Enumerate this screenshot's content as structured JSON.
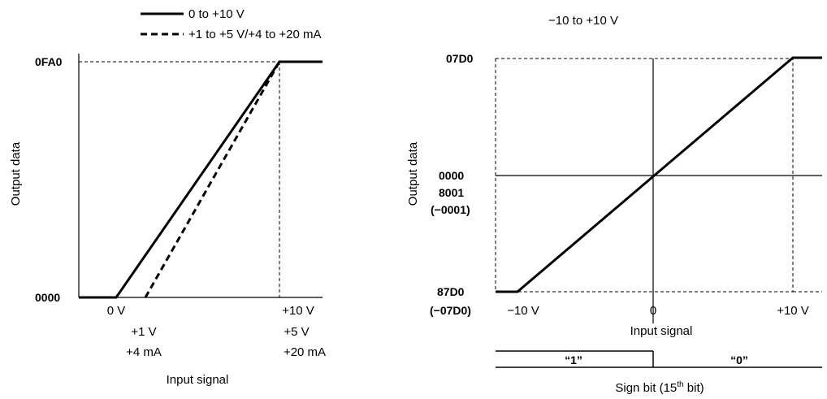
{
  "left_chart": {
    "legend": {
      "solid_label": "0 to +10 V",
      "dashed_label": "+1 to +5 V/+4 to +20 mA"
    },
    "y_axis_label": "Output data",
    "x_axis_label": "Input signal",
    "y_ticks": {
      "top": "0FA0",
      "bottom": "0000"
    },
    "x_ticks": {
      "zero_v": "0 V",
      "one_v": "+1 V",
      "four_ma": "+4 mA",
      "ten_v": "+10 V",
      "five_v": "+5 V",
      "twenty_ma": "+20 mA"
    }
  },
  "right_chart": {
    "title": "−10 to +10 V",
    "y_axis_label": "Output data",
    "x_axis_label": "Input signal",
    "y_ticks": {
      "top": "07D0",
      "zero": "0000",
      "neg_one": "8001",
      "neg_one_paren": "(−0001)",
      "bottom": "87D0",
      "bottom_paren": "(−07D0)"
    },
    "x_ticks": {
      "neg": "−10 V",
      "zero": "0",
      "pos": "+10 V"
    },
    "sign_bit": {
      "one": "“1”",
      "zero": "“0”",
      "label": "Sign bit (15",
      "sup": "th",
      "label_tail": " bit)"
    }
  },
  "chart_data": [
    {
      "type": "line",
      "x_unit": "V",
      "series": [
        {
          "style": "solid",
          "x": [
            -1,
            0,
            10,
            11
          ],
          "y": [
            "0000",
            "0000",
            "0FA0",
            "0FA0"
          ]
        },
        {
          "style": "dashed",
          "x": [
            1,
            5
          ],
          "y": [
            "0000",
            "0FA0"
          ]
        }
      ]
    },
    {
      "type": "line",
      "x_unit": "V",
      "series": [
        {
          "style": "solid",
          "x": [
            -11,
            -10,
            0,
            10,
            11
          ],
          "y": [
            "87D0",
            "87D0",
            "0000",
            "07D0",
            "07D0"
          ]
        }
      ]
    }
  ]
}
